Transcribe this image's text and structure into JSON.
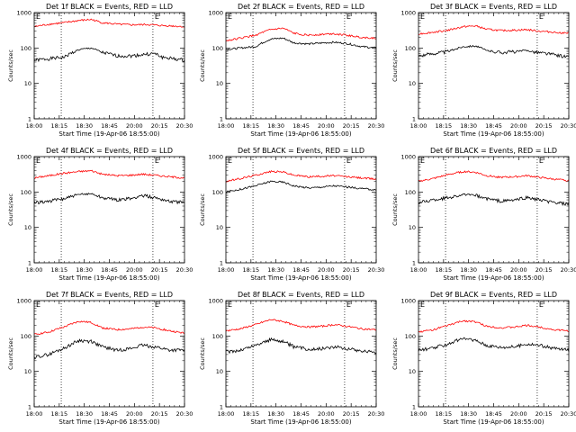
{
  "x_axis": {
    "ticks": [
      "18:00",
      "18:15",
      "18:30",
      "18:45",
      "20:00",
      "20:15",
      "20:30"
    ],
    "label": "Start Time (19-Apr-06 18:55:00)"
  },
  "y_axis": {
    "label": "Counts/sec",
    "ticks": [
      "1",
      "10",
      "100",
      "1000"
    ],
    "scale": "log",
    "range": [
      1,
      1000
    ]
  },
  "marker": "E",
  "colors": {
    "events": "#000000",
    "lld": "#ff0000",
    "background": "#ffffff"
  },
  "chart_data": [
    {
      "type": "line",
      "title": "Det 1f BLACK = Events, RED = LLD",
      "series": [
        {
          "color": "black",
          "points": [
            [
              0,
              45
            ],
            [
              0.1,
              50
            ],
            [
              0.2,
              55
            ],
            [
              0.3,
              90
            ],
            [
              0.38,
              100
            ],
            [
              0.45,
              75
            ],
            [
              0.55,
              60
            ],
            [
              0.65,
              60
            ],
            [
              0.72,
              65
            ],
            [
              0.8,
              70
            ],
            [
              0.85,
              55
            ],
            [
              0.92,
              50
            ],
            [
              1,
              45
            ]
          ]
        },
        {
          "color": "red",
          "points": [
            [
              0,
              400
            ],
            [
              0.1,
              470
            ],
            [
              0.2,
              520
            ],
            [
              0.3,
              600
            ],
            [
              0.38,
              640
            ],
            [
              0.45,
              520
            ],
            [
              0.55,
              470
            ],
            [
              0.65,
              450
            ],
            [
              0.75,
              460
            ],
            [
              0.85,
              430
            ],
            [
              0.92,
              420
            ],
            [
              1,
              400
            ]
          ]
        }
      ]
    },
    {
      "type": "line",
      "title": "Det 2f BLACK = Events, RED = LLD",
      "series": [
        {
          "color": "black",
          "points": [
            [
              0,
              90
            ],
            [
              0.1,
              100
            ],
            [
              0.2,
              110
            ],
            [
              0.3,
              180
            ],
            [
              0.38,
              190
            ],
            [
              0.45,
              140
            ],
            [
              0.55,
              130
            ],
            [
              0.65,
              140
            ],
            [
              0.72,
              145
            ],
            [
              0.8,
              135
            ],
            [
              0.9,
              110
            ],
            [
              1,
              100
            ]
          ]
        },
        {
          "color": "red",
          "points": [
            [
              0,
              160
            ],
            [
              0.1,
              190
            ],
            [
              0.2,
              230
            ],
            [
              0.3,
              330
            ],
            [
              0.38,
              360
            ],
            [
              0.45,
              260
            ],
            [
              0.55,
              230
            ],
            [
              0.65,
              245
            ],
            [
              0.72,
              255
            ],
            [
              0.8,
              230
            ],
            [
              0.9,
              200
            ],
            [
              1,
              190
            ]
          ]
        }
      ]
    },
    {
      "type": "line",
      "title": "Det 3f BLACK = Events, RED = LLD",
      "series": [
        {
          "color": "black",
          "points": [
            [
              0,
              60
            ],
            [
              0.1,
              70
            ],
            [
              0.2,
              80
            ],
            [
              0.3,
              110
            ],
            [
              0.38,
              115
            ],
            [
              0.45,
              85
            ],
            [
              0.55,
              75
            ],
            [
              0.65,
              80
            ],
            [
              0.72,
              85
            ],
            [
              0.8,
              75
            ],
            [
              0.9,
              65
            ],
            [
              1,
              55
            ]
          ]
        },
        {
          "color": "red",
          "points": [
            [
              0,
              250
            ],
            [
              0.1,
              280
            ],
            [
              0.2,
              320
            ],
            [
              0.3,
              400
            ],
            [
              0.38,
              420
            ],
            [
              0.45,
              340
            ],
            [
              0.55,
              310
            ],
            [
              0.65,
              320
            ],
            [
              0.72,
              330
            ],
            [
              0.8,
              300
            ],
            [
              0.9,
              280
            ],
            [
              1,
              260
            ]
          ]
        }
      ]
    },
    {
      "type": "line",
      "title": "Det 4f BLACK = Events, RED = LLD",
      "series": [
        {
          "color": "black",
          "points": [
            [
              0,
              50
            ],
            [
              0.1,
              55
            ],
            [
              0.2,
              65
            ],
            [
              0.3,
              85
            ],
            [
              0.38,
              90
            ],
            [
              0.45,
              70
            ],
            [
              0.55,
              60
            ],
            [
              0.65,
              65
            ],
            [
              0.72,
              80
            ],
            [
              0.8,
              70
            ],
            [
              0.9,
              55
            ],
            [
              1,
              50
            ]
          ]
        },
        {
          "color": "red",
          "points": [
            [
              0,
              250
            ],
            [
              0.1,
              290
            ],
            [
              0.2,
              340
            ],
            [
              0.3,
              380
            ],
            [
              0.38,
              400
            ],
            [
              0.45,
              320
            ],
            [
              0.55,
              290
            ],
            [
              0.65,
              300
            ],
            [
              0.72,
              320
            ],
            [
              0.8,
              300
            ],
            [
              0.9,
              270
            ],
            [
              1,
              250
            ]
          ]
        }
      ]
    },
    {
      "type": "line",
      "title": "Det 5f BLACK = Events, RED = LLD",
      "series": [
        {
          "color": "black",
          "points": [
            [
              0,
              100
            ],
            [
              0.1,
              120
            ],
            [
              0.2,
              150
            ],
            [
              0.3,
              200
            ],
            [
              0.38,
              190
            ],
            [
              0.45,
              150
            ],
            [
              0.55,
              130
            ],
            [
              0.65,
              140
            ],
            [
              0.72,
              150
            ],
            [
              0.8,
              140
            ],
            [
              0.9,
              125
            ],
            [
              1,
              115
            ]
          ]
        },
        {
          "color": "red",
          "points": [
            [
              0,
              200
            ],
            [
              0.1,
              240
            ],
            [
              0.2,
              300
            ],
            [
              0.3,
              380
            ],
            [
              0.38,
              370
            ],
            [
              0.45,
              300
            ],
            [
              0.55,
              270
            ],
            [
              0.65,
              280
            ],
            [
              0.72,
              290
            ],
            [
              0.8,
              270
            ],
            [
              0.9,
              250
            ],
            [
              1,
              230
            ]
          ]
        }
      ]
    },
    {
      "type": "line",
      "title": "Det 6f BLACK = Events, RED = LLD",
      "series": [
        {
          "color": "black",
          "points": [
            [
              0,
              50
            ],
            [
              0.1,
              60
            ],
            [
              0.2,
              70
            ],
            [
              0.3,
              85
            ],
            [
              0.38,
              80
            ],
            [
              0.45,
              65
            ],
            [
              0.55,
              55
            ],
            [
              0.65,
              60
            ],
            [
              0.72,
              70
            ],
            [
              0.8,
              60
            ],
            [
              0.9,
              50
            ],
            [
              1,
              45
            ]
          ]
        },
        {
          "color": "red",
          "points": [
            [
              0,
              200
            ],
            [
              0.1,
              240
            ],
            [
              0.2,
              310
            ],
            [
              0.3,
              380
            ],
            [
              0.38,
              360
            ],
            [
              0.45,
              290
            ],
            [
              0.55,
              260
            ],
            [
              0.65,
              270
            ],
            [
              0.72,
              290
            ],
            [
              0.8,
              260
            ],
            [
              0.9,
              230
            ],
            [
              1,
              210
            ]
          ]
        }
      ]
    },
    {
      "type": "line",
      "title": "Det 7f BLACK = Events, RED = LLD",
      "series": [
        {
          "color": "black",
          "points": [
            [
              0,
              25
            ],
            [
              0.1,
              30
            ],
            [
              0.2,
              45
            ],
            [
              0.3,
              75
            ],
            [
              0.38,
              70
            ],
            [
              0.45,
              50
            ],
            [
              0.55,
              40
            ],
            [
              0.65,
              45
            ],
            [
              0.72,
              55
            ],
            [
              0.8,
              50
            ],
            [
              0.9,
              40
            ],
            [
              1,
              40
            ]
          ]
        },
        {
          "color": "red",
          "points": [
            [
              0,
              110
            ],
            [
              0.1,
              130
            ],
            [
              0.2,
              180
            ],
            [
              0.3,
              260
            ],
            [
              0.38,
              240
            ],
            [
              0.45,
              170
            ],
            [
              0.55,
              150
            ],
            [
              0.65,
              160
            ],
            [
              0.72,
              180
            ],
            [
              0.8,
              170
            ],
            [
              0.9,
              140
            ],
            [
              1,
              120
            ]
          ]
        }
      ]
    },
    {
      "type": "line",
      "title": "Det 8f BLACK = Events, RED = LLD",
      "series": [
        {
          "color": "black",
          "points": [
            [
              0,
              35
            ],
            [
              0.1,
              40
            ],
            [
              0.2,
              55
            ],
            [
              0.3,
              80
            ],
            [
              0.38,
              70
            ],
            [
              0.45,
              50
            ],
            [
              0.55,
              42
            ],
            [
              0.65,
              45
            ],
            [
              0.72,
              50
            ],
            [
              0.8,
              45
            ],
            [
              0.9,
              38
            ],
            [
              1,
              35
            ]
          ]
        },
        {
          "color": "red",
          "points": [
            [
              0,
              140
            ],
            [
              0.1,
              160
            ],
            [
              0.2,
              210
            ],
            [
              0.3,
              290
            ],
            [
              0.38,
              260
            ],
            [
              0.45,
              200
            ],
            [
              0.55,
              180
            ],
            [
              0.65,
              190
            ],
            [
              0.72,
              210
            ],
            [
              0.8,
              190
            ],
            [
              0.9,
              160
            ],
            [
              1,
              150
            ]
          ]
        }
      ]
    },
    {
      "type": "line",
      "title": "Det 9f BLACK = Events, RED = LLD",
      "series": [
        {
          "color": "black",
          "points": [
            [
              0,
              40
            ],
            [
              0.1,
              45
            ],
            [
              0.2,
              60
            ],
            [
              0.3,
              85
            ],
            [
              0.38,
              75
            ],
            [
              0.45,
              55
            ],
            [
              0.55,
              48
            ],
            [
              0.65,
              50
            ],
            [
              0.72,
              60
            ],
            [
              0.8,
              55
            ],
            [
              0.9,
              45
            ],
            [
              1,
              40
            ]
          ]
        },
        {
          "color": "red",
          "points": [
            [
              0,
              130
            ],
            [
              0.1,
              150
            ],
            [
              0.2,
              200
            ],
            [
              0.3,
              270
            ],
            [
              0.38,
              250
            ],
            [
              0.45,
              190
            ],
            [
              0.55,
              170
            ],
            [
              0.65,
              180
            ],
            [
              0.72,
              200
            ],
            [
              0.8,
              180
            ],
            [
              0.9,
              150
            ],
            [
              1,
              140
            ]
          ]
        }
      ]
    }
  ]
}
